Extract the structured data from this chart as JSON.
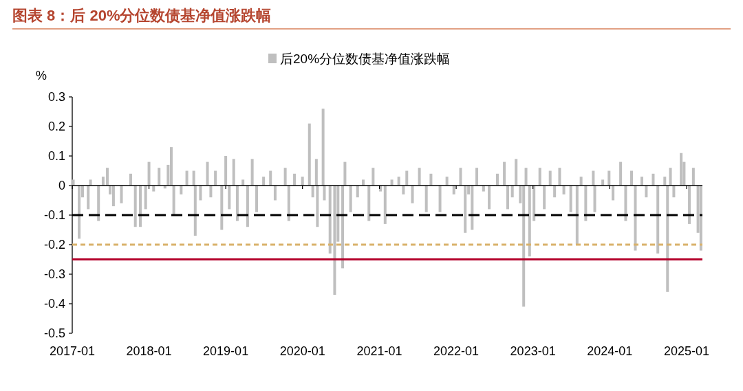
{
  "chart_data": {
    "type": "bar",
    "title": "图表 8：后 20%分位数债基净值涨跌幅",
    "ylabel": "%",
    "legend": "top",
    "x": [
      "2017-01-06",
      "2017-02-03",
      "2017-02-19",
      "2017-03-18",
      "2017-03-29",
      "2017-05-06",
      "2017-05-28",
      "2017-06-17",
      "2017-06-30",
      "2017-07-16",
      "2017-08-23",
      "2017-10-06",
      "2017-10-28",
      "2017-11-21",
      "2017-12-16",
      "2018-01-01",
      "2018-01-23",
      "2018-02-18",
      "2018-03-18",
      "2018-04-02",
      "2018-04-17",
      "2018-04-29",
      "2018-06-03",
      "2018-06-30",
      "2018-08-02",
      "2018-08-09",
      "2018-09-03",
      "2018-10-06",
      "2018-10-22",
      "2018-11-13",
      "2018-12-13",
      "2019-01-01",
      "2019-01-18",
      "2019-02-08",
      "2019-02-25",
      "2019-03-24",
      "2019-04-15",
      "2019-05-07",
      "2019-05-28",
      "2019-06-30",
      "2019-08-02",
      "2019-08-24",
      "2019-10-11",
      "2019-10-28",
      "2019-11-24",
      "2020-01-01",
      "2020-02-03",
      "2020-02-19",
      "2020-03-07",
      "2020-03-12",
      "2020-04-08",
      "2020-04-14",
      "2020-05-11",
      "2020-06-02",
      "2020-06-18",
      "2020-07-10",
      "2020-07-21",
      "2020-08-17",
      "2020-09-19",
      "2020-10-16",
      "2020-11-12",
      "2020-12-02",
      "2021-01-06",
      "2021-01-28",
      "2021-03-01",
      "2021-04-03",
      "2021-04-25",
      "2021-05-11",
      "2021-06-07",
      "2021-07-10",
      "2021-08-12",
      "2021-09-03",
      "2021-10-16",
      "2021-11-18",
      "2021-12-21",
      "2022-01-22",
      "2022-02-13",
      "2022-03-01",
      "2022-03-18",
      "2022-04-09",
      "2022-05-11",
      "2022-06-07",
      "2022-07-16",
      "2022-08-18",
      "2022-09-03",
      "2022-09-25",
      "2022-10-13",
      "2022-11-02",
      "2022-11-18",
      "2022-11-29",
      "2022-12-16",
      "2023-01-06",
      "2023-02-03",
      "2023-02-24",
      "2023-03-24",
      "2023-04-14",
      "2023-05-08",
      "2023-05-28",
      "2023-06-30",
      "2023-07-30",
      "2023-08-18",
      "2023-09-09",
      "2023-10-15",
      "2023-10-22",
      "2023-11-29",
      "2023-12-29",
      "2024-01-17",
      "2024-02-22",
      "2024-03-17",
      "2024-04-14",
      "2024-05-02",
      "2024-06-02",
      "2024-06-23",
      "2024-07-26",
      "2024-08-17",
      "2024-09-19",
      "2024-10-02",
      "2024-10-16",
      "2024-11-01",
      "2024-12-06",
      "2024-12-20",
      "2025-01-14",
      "2025-02-02",
      "2025-02-24",
      "2025-03-10"
    ],
    "series": [
      {
        "name": "后20%分位数债基净值涨跌幅",
        "color": "#bfbfbf",
        "values": [
          0.02,
          -0.18,
          -0.04,
          -0.08,
          0.02,
          -0.12,
          0.03,
          0.06,
          -0.03,
          -0.07,
          -0.06,
          0.04,
          -0.14,
          -0.14,
          -0.08,
          0.08,
          -0.02,
          0.06,
          -0.01,
          0.07,
          0.13,
          -0.1,
          -0.03,
          0.05,
          0.05,
          -0.17,
          -0.05,
          0.08,
          -0.04,
          0.05,
          -0.15,
          0.1,
          -0.08,
          0.09,
          -0.12,
          0.02,
          -0.14,
          0.09,
          -0.09,
          0.03,
          0.05,
          -0.05,
          0.06,
          -0.12,
          0.04,
          0.03,
          0.21,
          -0.04,
          0.09,
          -0.14,
          0.26,
          -0.05,
          -0.23,
          -0.37,
          -0.19,
          -0.28,
          0.08,
          -0.09,
          -0.04,
          0.02,
          -0.12,
          0.06,
          -0.02,
          -0.13,
          0.02,
          0.03,
          -0.03,
          0.05,
          -0.06,
          0.06,
          -0.09,
          0.04,
          -0.09,
          0.03,
          -0.03,
          0.06,
          -0.16,
          -0.03,
          -0.15,
          0.06,
          -0.02,
          -0.08,
          0.04,
          0.08,
          -0.08,
          -0.04,
          0.09,
          -0.06,
          -0.41,
          0.06,
          -0.24,
          -0.12,
          0.06,
          -0.08,
          0.05,
          -0.04,
          0.06,
          -0.03,
          -0.09,
          -0.2,
          0.03,
          -0.12,
          0.05,
          -0.09,
          0.02,
          0.05,
          -0.05,
          0.08,
          -0.12,
          0.05,
          -0.22,
          0.03,
          -0.04,
          0.04,
          -0.23,
          0.03,
          -0.36,
          0.06,
          -0.04,
          0.11,
          0.08,
          -0.13,
          0.06,
          -0.16,
          -0.22
        ]
      }
    ],
    "xlim": [
      "2017-01-01",
      "2025-03-17"
    ],
    "xticks": [
      "2017-01",
      "2018-01",
      "2019-01",
      "2020-01",
      "2021-01",
      "2022-01",
      "2023-01",
      "2024-01",
      "2025-01"
    ],
    "ylim": [
      -0.5,
      0.3
    ],
    "yticks": [
      0.3,
      0.2,
      0.1,
      0,
      -0.1,
      -0.2,
      -0.3,
      -0.4,
      -0.5
    ],
    "ref_lines": [
      {
        "axis": "y",
        "value": -0.1,
        "color": "#000000",
        "line_style": "dashed"
      },
      {
        "axis": "y",
        "value": -0.2,
        "color": "#d9b26b",
        "line_style": "dotted"
      },
      {
        "axis": "y",
        "value": -0.25,
        "color": "#b4002a",
        "line_style": "solid"
      }
    ]
  }
}
